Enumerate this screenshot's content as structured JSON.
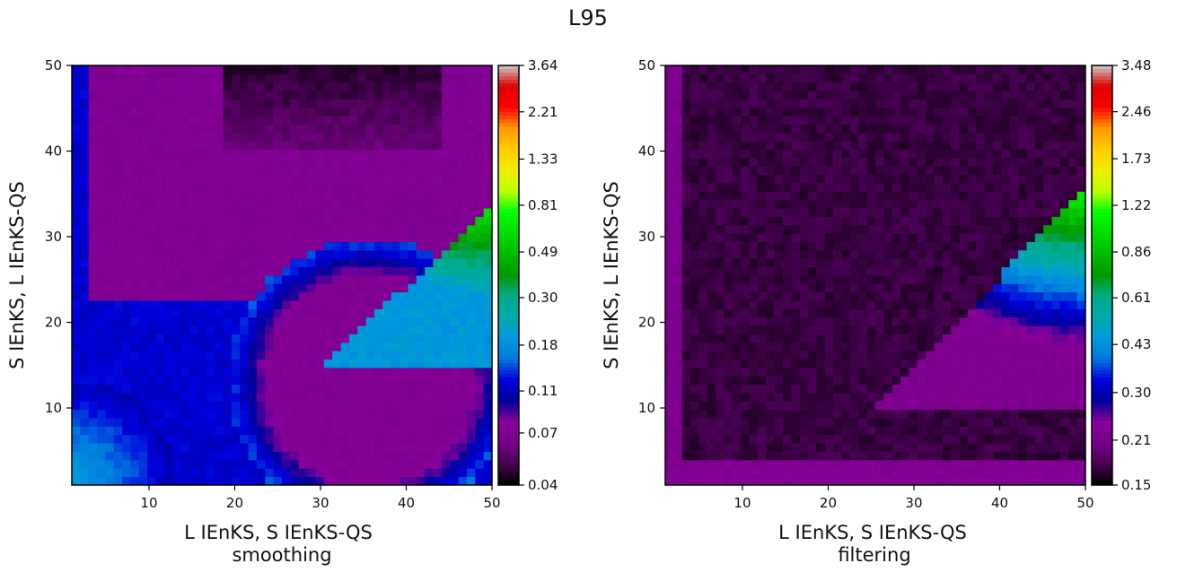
{
  "figure": {
    "title": "L95"
  },
  "chart_data": [
    {
      "type": "heatmap",
      "title": "",
      "xlabel": "L IEnKS, S IEnKS-QS",
      "xlabel2": "smoothing",
      "ylabel": "S IEnKS, L IEnKS-QS",
      "xlim": [
        1,
        50
      ],
      "ylim": [
        1,
        50
      ],
      "xticks": [
        "10",
        "20",
        "30",
        "40",
        "50"
      ],
      "yticks": [
        "10",
        "20",
        "30",
        "40",
        "50"
      ],
      "colorbar": {
        "scale": "log",
        "ticks": [
          "0.04",
          "0.07",
          "0.11",
          "0.18",
          "0.30",
          "0.49",
          "0.81",
          "1.33",
          "2.21",
          "3.64"
        ],
        "min": 0.04,
        "max": 3.64
      },
      "colormap": "nipy_spectral",
      "grid": false
    },
    {
      "type": "heatmap",
      "title": "",
      "xlabel": "L IEnKS, S IEnKS-QS",
      "xlabel2": "filtering",
      "ylabel": "S IEnKS, L IEnKS-QS",
      "xlim": [
        1,
        50
      ],
      "ylim": [
        1,
        50
      ],
      "xticks": [
        "10",
        "20",
        "30",
        "40",
        "50"
      ],
      "yticks": [
        "10",
        "20",
        "30",
        "40",
        "50"
      ],
      "colorbar": {
        "scale": "log",
        "ticks": [
          "0.15",
          "0.21",
          "0.30",
          "0.43",
          "0.61",
          "0.86",
          "1.22",
          "1.73",
          "2.46",
          "3.48"
        ],
        "min": 0.15,
        "max": 3.48
      },
      "colormap": "nipy_spectral",
      "grid": false
    }
  ]
}
